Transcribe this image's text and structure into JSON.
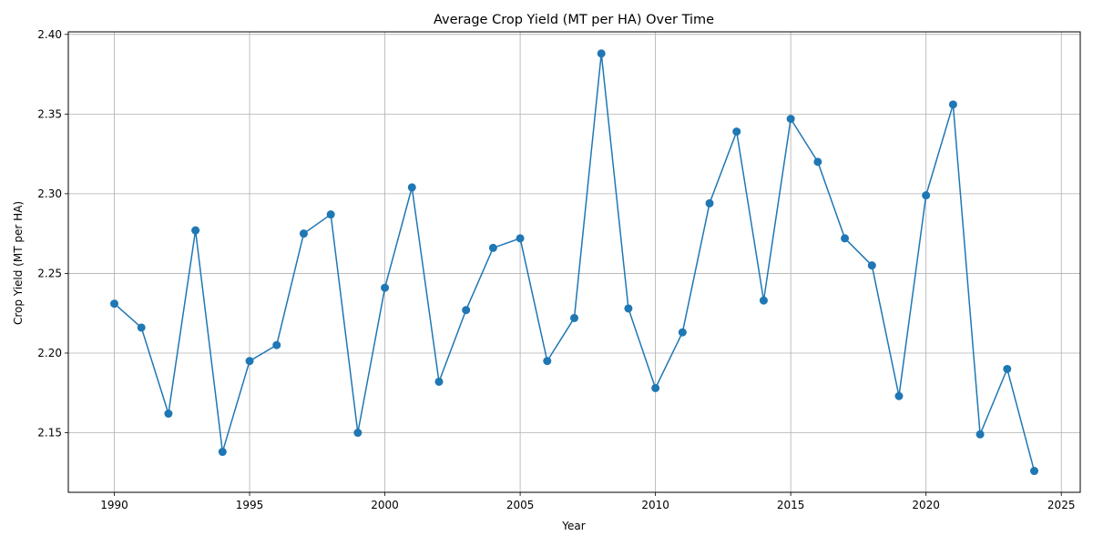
{
  "chart_data": {
    "type": "line",
    "title": "Average Crop Yield (MT per HA) Over Time",
    "xlabel": "Year",
    "ylabel": "Crop Yield (MT per HA)",
    "xlim": [
      1988.3,
      2025.7
    ],
    "ylim": [
      2.1126,
      2.4016
    ],
    "grid": true,
    "color": "#1f77b4",
    "x_ticks": [
      1990,
      1995,
      2000,
      2005,
      2010,
      2015,
      2020,
      2025
    ],
    "y_ticks": [
      2.15,
      2.2,
      2.25,
      2.3,
      2.35,
      2.4
    ],
    "y_tick_labels": [
      "2.15",
      "2.20",
      "2.25",
      "2.30",
      "2.35",
      "2.40"
    ],
    "series": [
      {
        "x": [
          1990,
          1991,
          1992,
          1993,
          1994,
          1995,
          1996,
          1997,
          1998,
          1999,
          2000,
          2001,
          2002,
          2003,
          2004,
          2005,
          2006,
          2007,
          2008,
          2009,
          2010,
          2011,
          2012,
          2013,
          2014,
          2015,
          2016,
          2017,
          2018,
          2019,
          2020,
          2021,
          2022,
          2023,
          2024
        ],
        "y": [
          2.231,
          2.216,
          2.162,
          2.277,
          2.138,
          2.195,
          2.205,
          2.275,
          2.287,
          2.15,
          2.241,
          2.304,
          2.182,
          2.227,
          2.266,
          2.272,
          2.195,
          2.222,
          2.388,
          2.228,
          2.178,
          2.213,
          2.294,
          2.339,
          2.233,
          2.347,
          2.32,
          2.272,
          2.255,
          2.173,
          2.299,
          2.356,
          2.149,
          2.19,
          2.126
        ]
      }
    ]
  }
}
